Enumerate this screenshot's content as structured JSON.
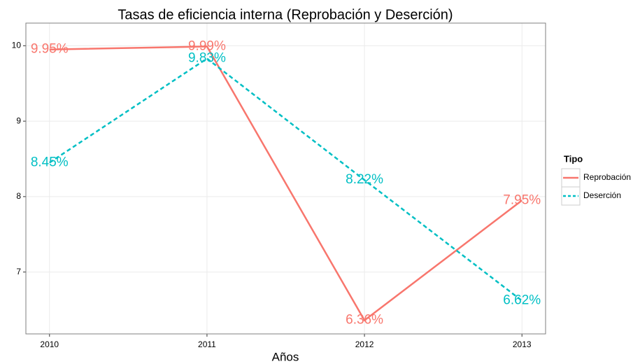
{
  "chart_data": {
    "type": "line",
    "title": "Tasas de eficiencia interna (Reprobación y Deserción)",
    "x_label": "Años",
    "x": [
      2010,
      2011,
      2012,
      2013
    ],
    "xlim": [
      2009.85,
      2013.15
    ],
    "xticks": [
      2010,
      2011,
      2012,
      2013
    ],
    "ylim": [
      6.18,
      10.3
    ],
    "yticks": [
      7,
      8,
      9,
      10
    ],
    "grid": true,
    "legend_title": "Tipo",
    "legend_position": "right",
    "series": [
      {
        "name": "Reprobación",
        "color": "#f8766d",
        "dash": "solid",
        "values": [
          9.95,
          9.99,
          6.36,
          7.95
        ],
        "value_labels": [
          "9.95%",
          "9.99%",
          "6.36%",
          "7.95%"
        ]
      },
      {
        "name": "Deserción",
        "color": "#00bfc4",
        "dash": "dashed",
        "values": [
          8.45,
          9.83,
          8.22,
          6.62
        ],
        "value_labels": [
          "8.45%",
          "9.83%",
          "8.22%",
          "6.62%"
        ]
      }
    ]
  }
}
